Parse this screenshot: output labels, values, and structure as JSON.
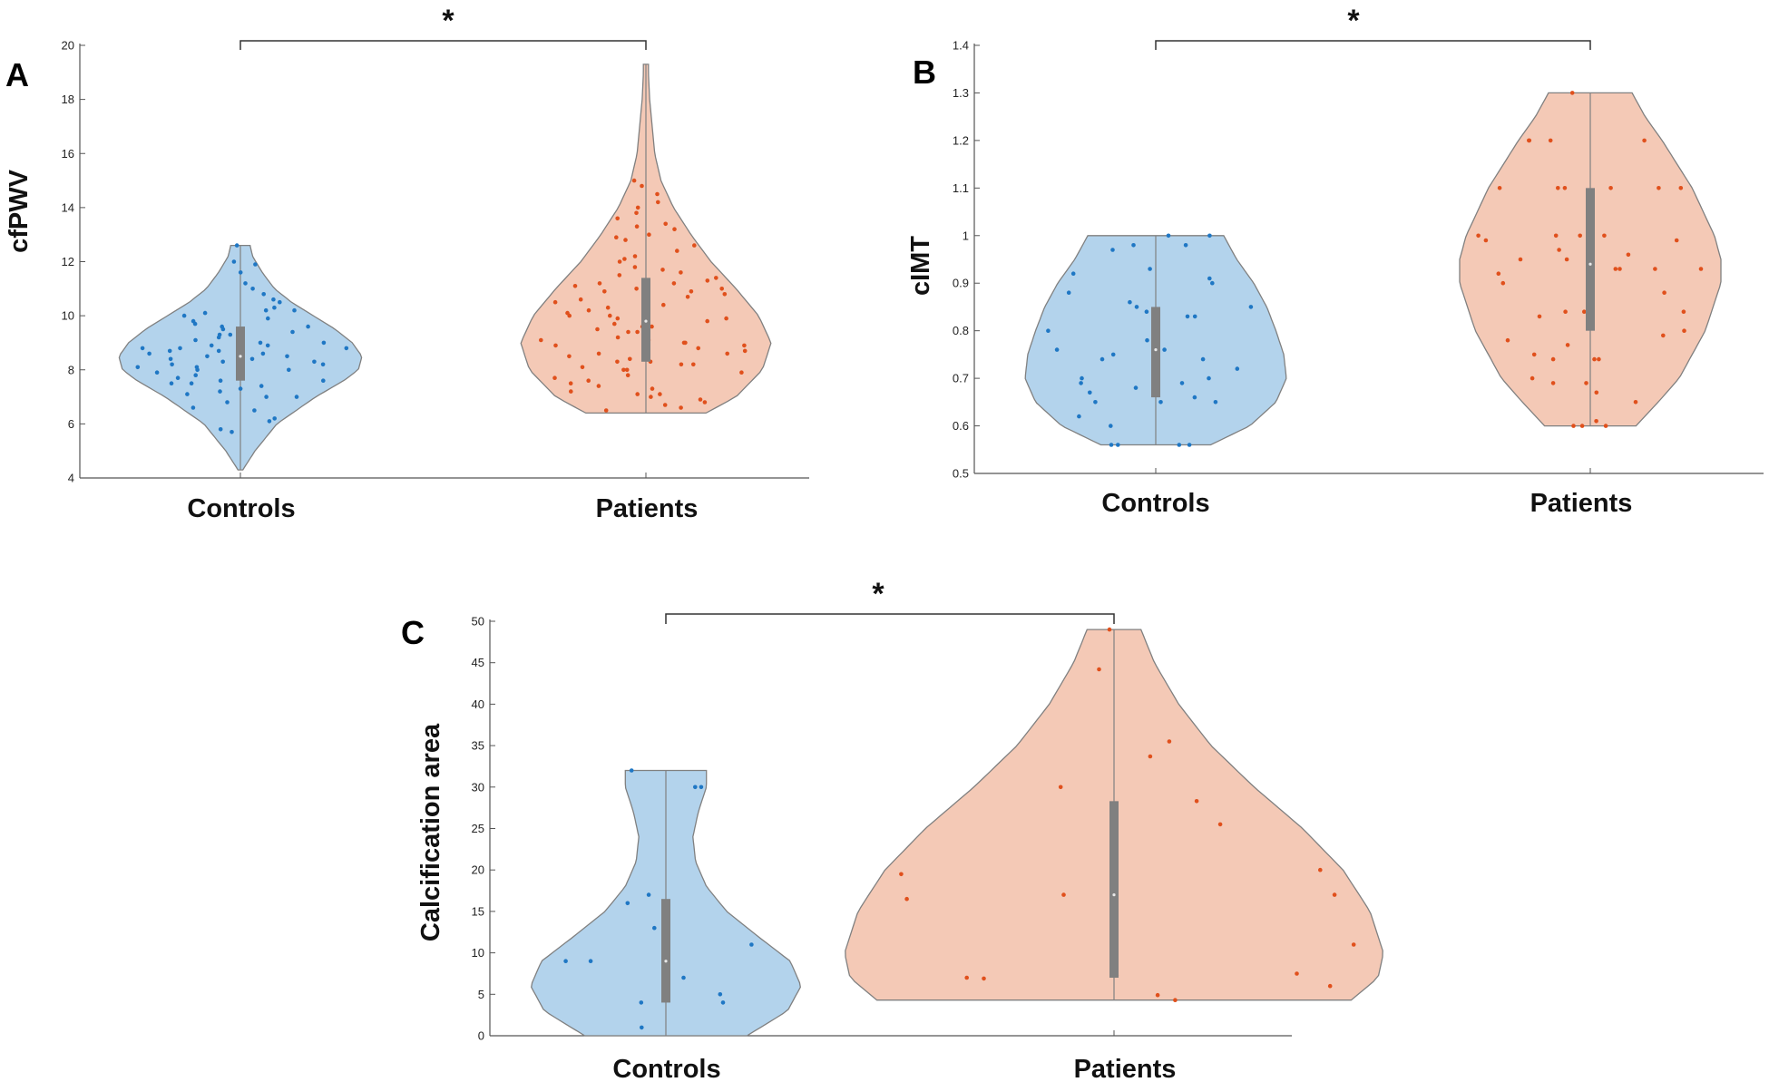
{
  "colors": {
    "controls_fill": "#b3d3ec",
    "controls_dot": "#1f77c4",
    "patients_fill": "#f4c9b6",
    "patients_dot": "#e0501c",
    "box": "#808080",
    "outline": "#808080"
  },
  "chart_data": [
    {
      "type": "violin",
      "panel": "A",
      "ylabel": "cfPWV",
      "ylim": [
        4,
        20
      ],
      "yticks": [
        4,
        6,
        8,
        10,
        12,
        14,
        16,
        18,
        20
      ],
      "categories": [
        "Controls",
        "Patients"
      ],
      "significance": "*",
      "groups": [
        {
          "name": "Controls",
          "range": [
            4.3,
            12.6
          ],
          "quartiles": [
            7.6,
            8.5,
            9.6
          ],
          "density": [
            [
              4.3,
              0.02
            ],
            [
              5,
              0.12
            ],
            [
              6,
              0.3
            ],
            [
              7,
              0.62
            ],
            [
              7.6,
              0.85
            ],
            [
              8,
              0.97
            ],
            [
              8.5,
              1.0
            ],
            [
              9,
              0.92
            ],
            [
              9.5,
              0.78
            ],
            [
              10,
              0.6
            ],
            [
              10.5,
              0.42
            ],
            [
              11,
              0.28
            ],
            [
              11.6,
              0.18
            ],
            [
              12.2,
              0.1
            ],
            [
              12.6,
              0.08
            ]
          ],
          "points": [
            6.1,
            6.2,
            6.6,
            6.8,
            7,
            7.1,
            7.2,
            7.3,
            7.4,
            7.5,
            7.5,
            7.6,
            7.6,
            7.7,
            7.8,
            7.8,
            7.9,
            8,
            8,
            8.1,
            8.1,
            8.2,
            8.2,
            8.3,
            8.3,
            8.4,
            8.4,
            8.5,
            8.5,
            8.6,
            8.6,
            8.7,
            8.7,
            8.8,
            8.8,
            8.9,
            8.9,
            9,
            9,
            9.1,
            9.2,
            9.3,
            9.3,
            9.4,
            9.5,
            9.6,
            9.7,
            9.8,
            9.9,
            10,
            10.1,
            10.2,
            10.3,
            10.5,
            10.6,
            10.8,
            11,
            11.2,
            11.6,
            11.9,
            12,
            12.6,
            5.8,
            5.7,
            6.5,
            7,
            8.8,
            9.6,
            10.2
          ]
        },
        {
          "name": "Patients",
          "range": [
            6.4,
            19.3
          ],
          "quartiles": [
            8.3,
            9.8,
            11.4
          ],
          "density": [
            [
              6.4,
              0.48
            ],
            [
              7,
              0.72
            ],
            [
              8,
              0.93
            ],
            [
              9,
              1.0
            ],
            [
              10,
              0.9
            ],
            [
              11,
              0.72
            ],
            [
              12,
              0.52
            ],
            [
              13,
              0.36
            ],
            [
              14,
              0.22
            ],
            [
              15,
              0.12
            ],
            [
              16,
              0.07
            ],
            [
              17,
              0.05
            ],
            [
              18,
              0.03
            ],
            [
              19,
              0.02
            ],
            [
              19.3,
              0.02
            ]
          ],
          "points": [
            6.5,
            6.6,
            6.7,
            6.8,
            7,
            7.1,
            7.2,
            7.3,
            7.4,
            7.5,
            7.6,
            7.7,
            7.8,
            7.9,
            8,
            8,
            8.1,
            8.2,
            8.3,
            8.3,
            8.4,
            8.5,
            8.6,
            8.7,
            8.8,
            8.9,
            9,
            9,
            9.1,
            9.1,
            9.2,
            9.3,
            9.4,
            9.5,
            9.6,
            9.7,
            9.8,
            9.9,
            10,
            10,
            10.1,
            10.2,
            10.3,
            10.4,
            10.5,
            10.6,
            10.7,
            10.8,
            10.9,
            11,
            11,
            11.1,
            11.2,
            11.3,
            11.4,
            11.5,
            11.6,
            11.8,
            12,
            12.2,
            12.4,
            12.6,
            12.8,
            13,
            13.2,
            13.4,
            13.6,
            13.8,
            14,
            14.2,
            14.5,
            14.8,
            15,
            8.2,
            8.6,
            9.4,
            9.9,
            10.4,
            11.2,
            12.1,
            7.1,
            6.9,
            8.9,
            9.6,
            10.9,
            11.7,
            12.9,
            13.3
          ]
        }
      ]
    },
    {
      "type": "violin",
      "panel": "B",
      "ylabel": "cIMT",
      "ylim": [
        0.5,
        1.4
      ],
      "yticks": [
        0.5,
        0.6,
        0.7,
        0.8,
        0.9,
        1,
        1.1,
        1.2,
        1.3,
        1.4
      ],
      "ytick_labels": [
        "0.5",
        "0.6",
        "0.7",
        "0.8",
        "0.9",
        "1",
        "1.1",
        "1.2",
        "1.3",
        "1.4"
      ],
      "categories": [
        "Controls",
        "Patients"
      ],
      "significance": "*",
      "groups": [
        {
          "name": "Controls",
          "range": [
            0.56,
            1.0
          ],
          "quartiles": [
            0.66,
            0.76,
            0.85
          ],
          "density": [
            [
              0.56,
              0.42
            ],
            [
              0.6,
              0.72
            ],
            [
              0.65,
              0.92
            ],
            [
              0.7,
              1.0
            ],
            [
              0.75,
              0.98
            ],
            [
              0.8,
              0.92
            ],
            [
              0.85,
              0.85
            ],
            [
              0.9,
              0.75
            ],
            [
              0.95,
              0.62
            ],
            [
              1.0,
              0.52
            ]
          ],
          "points": [
            0.56,
            0.56,
            0.56,
            0.56,
            0.6,
            0.62,
            0.65,
            0.65,
            0.65,
            0.66,
            0.67,
            0.68,
            0.69,
            0.69,
            0.7,
            0.7,
            0.72,
            0.74,
            0.74,
            0.75,
            0.76,
            0.76,
            0.78,
            0.8,
            0.83,
            0.83,
            0.84,
            0.84,
            0.85,
            0.85,
            0.86,
            0.88,
            0.9,
            0.91,
            0.92,
            0.93,
            0.97,
            0.98,
            0.98,
            1.0,
            1.0
          ]
        },
        {
          "name": "Patients",
          "range": [
            0.6,
            1.3
          ],
          "quartiles": [
            0.8,
            0.94,
            1.1
          ],
          "density": [
            [
              0.6,
              0.35
            ],
            [
              0.65,
              0.52
            ],
            [
              0.7,
              0.68
            ],
            [
              0.8,
              0.88
            ],
            [
              0.9,
              1.0
            ],
            [
              0.95,
              1.0
            ],
            [
              1.0,
              0.95
            ],
            [
              1.1,
              0.78
            ],
            [
              1.2,
              0.55
            ],
            [
              1.25,
              0.42
            ],
            [
              1.3,
              0.32
            ]
          ],
          "points": [
            0.6,
            0.6,
            0.6,
            0.61,
            0.65,
            0.67,
            0.69,
            0.69,
            0.7,
            0.74,
            0.74,
            0.74,
            0.75,
            0.77,
            0.78,
            0.79,
            0.8,
            0.83,
            0.84,
            0.84,
            0.84,
            0.88,
            0.9,
            0.92,
            0.93,
            0.93,
            0.93,
            0.93,
            0.95,
            0.95,
            0.96,
            0.97,
            0.99,
            0.99,
            1.0,
            1.0,
            1.0,
            1.0,
            1.0,
            1.1,
            1.1,
            1.1,
            1.1,
            1.1,
            1.1,
            1.2,
            1.2,
            1.2,
            1.2,
            1.3
          ]
        }
      ]
    },
    {
      "type": "violin",
      "panel": "C",
      "ylabel": "Calcification area",
      "ylim": [
        0,
        50
      ],
      "yticks": [
        0,
        5,
        10,
        15,
        20,
        25,
        30,
        35,
        40,
        45,
        50
      ],
      "categories": [
        "Controls",
        "Patients"
      ],
      "significance": "*",
      "groups": [
        {
          "name": "Controls",
          "range": [
            0,
            32
          ],
          "quartiles": [
            4,
            9,
            16.5
          ],
          "density": [
            [
              0,
              0.6
            ],
            [
              3,
              0.9
            ],
            [
              6,
              1.0
            ],
            [
              9,
              0.92
            ],
            [
              12,
              0.68
            ],
            [
              15,
              0.45
            ],
            [
              18,
              0.3
            ],
            [
              21,
              0.22
            ],
            [
              24,
              0.2
            ],
            [
              27,
              0.24
            ],
            [
              30,
              0.3
            ],
            [
              32,
              0.3
            ]
          ],
          "points": [
            1,
            4,
            4,
            5,
            7,
            9,
            9,
            11,
            13,
            16,
            17,
            30,
            30,
            32
          ]
        },
        {
          "name": "Patients",
          "range": [
            4.3,
            49
          ],
          "quartiles": [
            7,
            17,
            28.3
          ],
          "density": [
            [
              4.3,
              0.88
            ],
            [
              7,
              0.98
            ],
            [
              10,
              1.0
            ],
            [
              15,
              0.95
            ],
            [
              20,
              0.85
            ],
            [
              25,
              0.7
            ],
            [
              30,
              0.52
            ],
            [
              35,
              0.36
            ],
            [
              40,
              0.24
            ],
            [
              45,
              0.15
            ],
            [
              49,
              0.1
            ]
          ],
          "points": [
            4.3,
            4.9,
            6,
            6.9,
            7,
            7.3,
            7.5,
            11,
            16.5,
            17,
            17,
            19.5,
            20,
            25.5,
            28.3,
            30,
            33.7,
            35.5,
            44.2,
            49
          ]
        }
      ]
    }
  ]
}
